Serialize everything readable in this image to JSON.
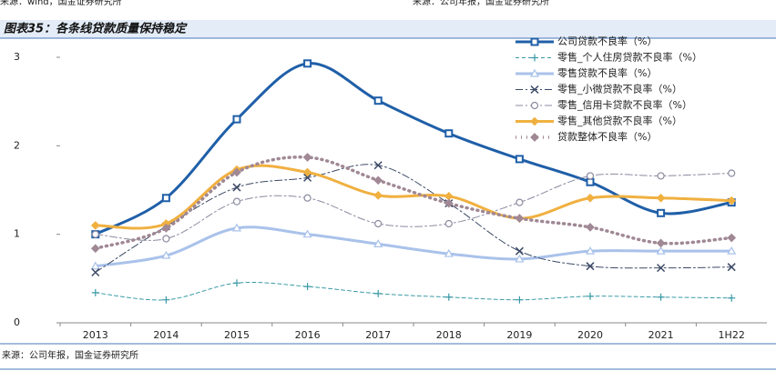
{
  "header": {
    "left_source": "来源：wind，国金证券研究所",
    "right_source": "来源：公司年报，国金证券研究所"
  },
  "chart_data": {
    "type": "line",
    "title": "图表35：各条线贷款质量保持稳定",
    "categories": [
      "2013",
      "2014",
      "2015",
      "2016",
      "2017",
      "2018",
      "2019",
      "2020",
      "2021",
      "1H22"
    ],
    "ylim": [
      0,
      3
    ],
    "yticks": [
      0,
      1,
      2,
      3
    ],
    "grid": false,
    "legend": "top-right",
    "smooth": true,
    "series": [
      {
        "name": "公司贷款不良率（%）",
        "color": "#1f5fa8",
        "width": 3,
        "dash": "solid",
        "marker": "square",
        "values": [
          1.0,
          1.41,
          2.3,
          2.93,
          2.51,
          2.14,
          1.85,
          1.59,
          1.24,
          1.36
        ]
      },
      {
        "name": "零售_个人住房贷款不良率（%）",
        "color": "#3a9aa6",
        "width": 1,
        "dash": "dashed",
        "marker": "plus",
        "values": [
          0.34,
          0.26,
          0.45,
          0.41,
          0.33,
          0.29,
          0.26,
          0.3,
          0.29,
          0.28
        ]
      },
      {
        "name": "零售贷款不良率（%）",
        "color": "#a9c2ea",
        "width": 3,
        "dash": "solid",
        "marker": "triangle",
        "values": [
          0.64,
          0.76,
          1.07,
          1.0,
          0.89,
          0.78,
          0.72,
          0.81,
          0.81,
          0.81
        ]
      },
      {
        "name": "零售_小微贷款不良率（%）",
        "color": "#3c4a66",
        "width": 1,
        "dash": "dashdot",
        "marker": "cross",
        "values": [
          0.57,
          1.09,
          1.53,
          1.64,
          1.78,
          1.35,
          0.81,
          0.64,
          0.62,
          0.63
        ]
      },
      {
        "name": "零售_信用卡贷款不良率（%）",
        "color": "#8a8aa0",
        "width": 1,
        "dash": "dashdot",
        "marker": "circle",
        "values": [
          1.0,
          0.95,
          1.37,
          1.41,
          1.12,
          1.12,
          1.36,
          1.66,
          1.66,
          1.69
        ]
      },
      {
        "name": "零售_其他贷款不良率（%）",
        "color": "#f0b040",
        "width": 3,
        "dash": "solid",
        "marker": "diamond",
        "values": [
          1.1,
          1.12,
          1.73,
          1.7,
          1.44,
          1.43,
          1.18,
          1.41,
          1.41,
          1.38
        ]
      },
      {
        "name": "贷款整体不良率（%）",
        "color": "#a08894",
        "width": 3.5,
        "dash": "dotted",
        "marker": "diamond",
        "values": [
          0.84,
          1.07,
          1.7,
          1.87,
          1.61,
          1.35,
          1.18,
          1.08,
          0.9,
          0.96
        ]
      }
    ]
  },
  "footer": {
    "source": "来源：公司年报，国金证券研究所"
  }
}
